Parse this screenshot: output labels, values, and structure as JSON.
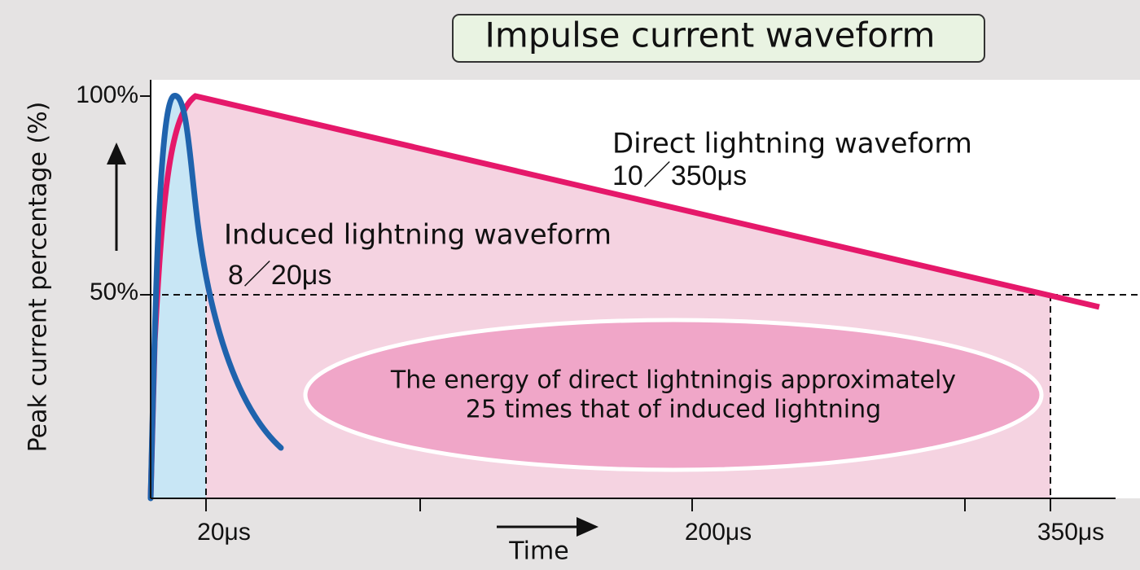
{
  "title": "Impulse current waveform",
  "y_axis": {
    "label": "Peak current percentage (%)",
    "ticks": [
      "100%",
      "50%"
    ]
  },
  "x_axis": {
    "label": "Time",
    "ticks": [
      "20μs",
      "200μs",
      "350μs"
    ]
  },
  "annotations": {
    "direct": {
      "name": "Direct lightning waveform",
      "spec": "10／350μs"
    },
    "induced": {
      "name": "Induced lightning waveform",
      "spec": "8／20μs"
    },
    "energy_note": [
      "The energy of direct lightningis approximately",
      "25 times that of induced lightning"
    ]
  }
}
